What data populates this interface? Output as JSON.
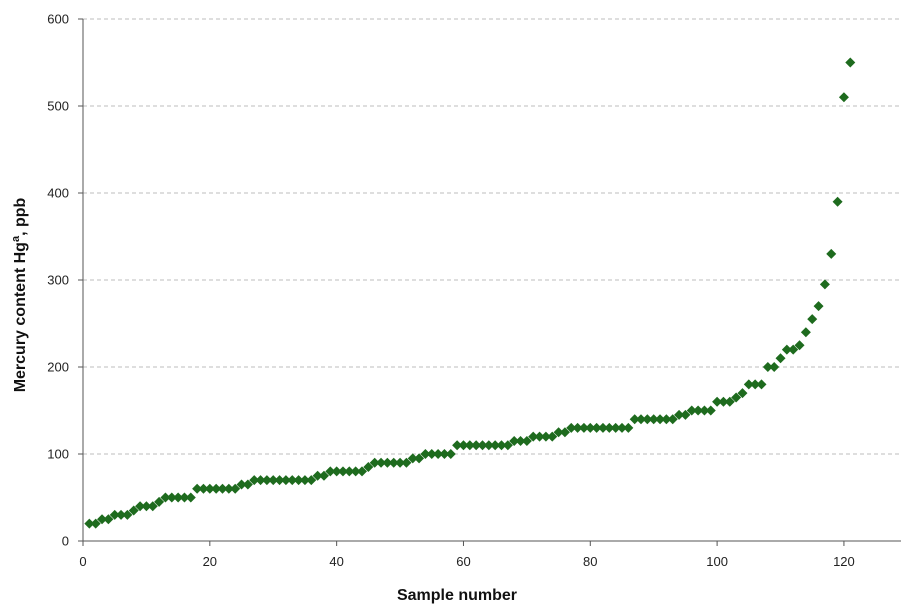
{
  "chart_data": {
    "type": "scatter",
    "xlabel": "Sample number",
    "ylabel_main": "Mercury content Hg",
    "ylabel_sup": "a",
    "ylabel_tail": ", ppb",
    "xlim": [
      0,
      129
    ],
    "ylim": [
      0,
      600
    ],
    "xticks": [
      0,
      20,
      40,
      60,
      80,
      100,
      120
    ],
    "yticks": [
      0,
      100,
      200,
      300,
      400,
      500,
      600
    ],
    "grid": "horizontal-dashed",
    "marker": "diamond",
    "marker_color": "#1e6b1e",
    "series": [
      {
        "x": [
          1,
          2,
          3,
          4,
          5,
          6,
          7,
          8,
          9,
          10,
          11,
          12,
          13,
          14,
          15,
          16,
          17,
          18,
          19,
          20,
          21,
          22,
          23,
          24,
          25,
          26,
          27,
          28,
          29,
          30,
          31,
          32,
          33,
          34,
          35,
          36,
          37,
          38,
          39,
          40,
          41,
          42,
          43,
          44,
          45,
          46,
          47,
          48,
          49,
          50,
          51,
          52,
          53,
          54,
          55,
          56,
          57,
          58,
          59,
          60,
          61,
          62,
          63,
          64,
          65,
          66,
          67,
          68,
          69,
          70,
          71,
          72,
          73,
          74,
          75,
          76,
          77,
          78,
          79,
          80,
          81,
          82,
          83,
          84,
          85,
          86,
          87,
          88,
          89,
          90,
          91,
          92,
          93,
          94,
          95,
          96,
          97,
          98,
          99,
          100,
          101,
          102,
          103,
          104,
          105,
          106,
          107,
          108,
          109,
          110,
          111,
          112,
          113,
          114,
          115,
          116,
          117,
          118,
          119,
          120,
          121
        ],
        "y": [
          20,
          20,
          25,
          25,
          30,
          30,
          30,
          35,
          40,
          40,
          40,
          45,
          50,
          50,
          50,
          50,
          50,
          60,
          60,
          60,
          60,
          60,
          60,
          60,
          65,
          65,
          70,
          70,
          70,
          70,
          70,
          70,
          70,
          70,
          70,
          70,
          75,
          75,
          80,
          80,
          80,
          80,
          80,
          80,
          85,
          90,
          90,
          90,
          90,
          90,
          90,
          95,
          95,
          100,
          100,
          100,
          100,
          100,
          110,
          110,
          110,
          110,
          110,
          110,
          110,
          110,
          110,
          115,
          115,
          115,
          120,
          120,
          120,
          120,
          125,
          125,
          130,
          130,
          130,
          130,
          130,
          130,
          130,
          130,
          130,
          130,
          140,
          140,
          140,
          140,
          140,
          140,
          140,
          145,
          145,
          150,
          150,
          150,
          150,
          160,
          160,
          160,
          165,
          170,
          180,
          180,
          180,
          200,
          200,
          210,
          220,
          220,
          225,
          240,
          255,
          270,
          295,
          330,
          390,
          510,
          550
        ]
      }
    ]
  }
}
